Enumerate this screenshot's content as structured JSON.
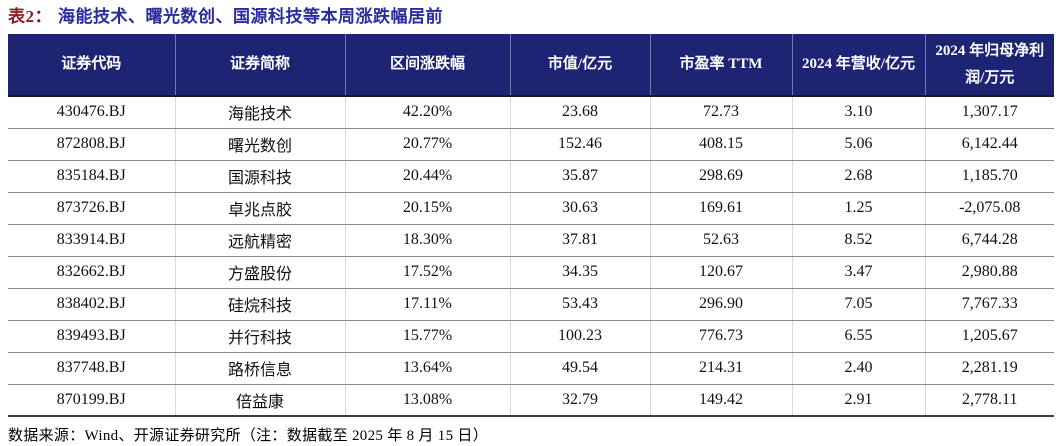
{
  "title": {
    "label": "表2：",
    "text": "海能技术、曙光数创、国源科技等本周涨跌幅居前"
  },
  "colors": {
    "header_bg": "#1d2473",
    "title_label": "#8b1c24",
    "title_text": "#2b2b9e"
  },
  "table": {
    "headers": [
      "证券代码",
      "证券简称",
      "区间涨跌幅",
      "市值/亿元",
      "市盈率 TTM",
      "2024 年营收/亿元",
      "2024 年归母净利润/万元"
    ],
    "rows": [
      [
        "430476.BJ",
        "海能技术",
        "42.20%",
        "23.68",
        "72.73",
        "3.10",
        "1,307.17"
      ],
      [
        "872808.BJ",
        "曙光数创",
        "20.77%",
        "152.46",
        "408.15",
        "5.06",
        "6,142.44"
      ],
      [
        "835184.BJ",
        "国源科技",
        "20.44%",
        "35.87",
        "298.69",
        "2.68",
        "1,185.70"
      ],
      [
        "873726.BJ",
        "卓兆点胶",
        "20.15%",
        "30.63",
        "169.61",
        "1.25",
        "-2,075.08"
      ],
      [
        "833914.BJ",
        "远航精密",
        "18.30%",
        "37.81",
        "52.63",
        "8.52",
        "6,744.28"
      ],
      [
        "832662.BJ",
        "方盛股份",
        "17.52%",
        "34.35",
        "120.67",
        "3.47",
        "2,980.88"
      ],
      [
        "838402.BJ",
        "硅烷科技",
        "17.11%",
        "53.43",
        "296.90",
        "7.05",
        "7,767.33"
      ],
      [
        "839493.BJ",
        "并行科技",
        "15.77%",
        "100.23",
        "776.73",
        "6.55",
        "1,205.67"
      ],
      [
        "837748.BJ",
        "路桥信息",
        "13.64%",
        "49.54",
        "214.31",
        "2.40",
        "2,281.19"
      ],
      [
        "870199.BJ",
        "倍益康",
        "13.08%",
        "32.79",
        "149.42",
        "2.91",
        "2,778.11"
      ]
    ]
  },
  "footer": {
    "source": "数据来源：Wind、开源证券研究所（注：数据截至 2025 年 8 月 15 日）"
  }
}
